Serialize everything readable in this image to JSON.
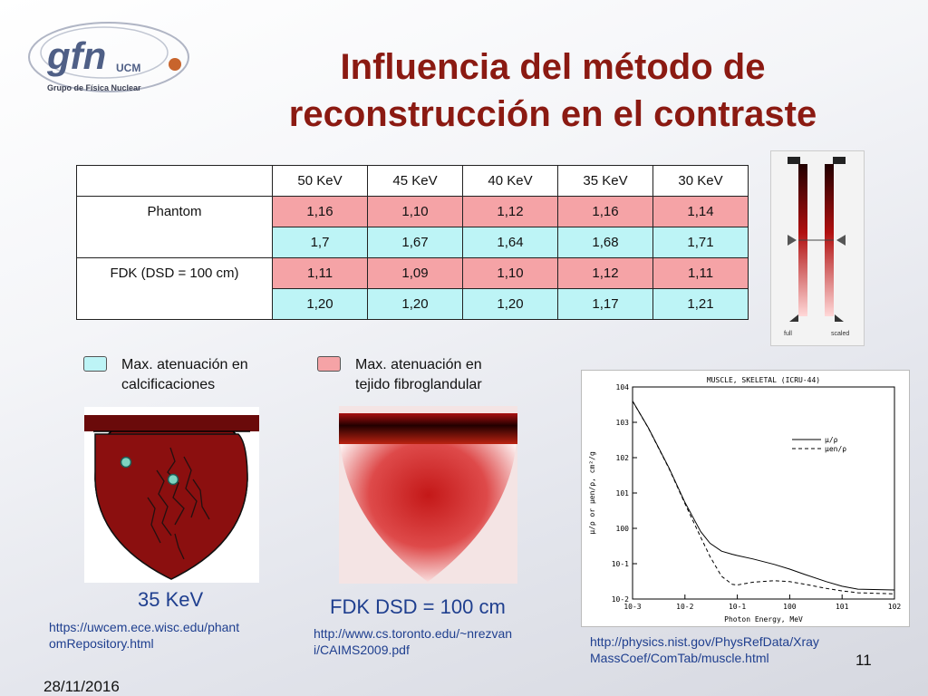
{
  "slide": {
    "title_line1": "Influencia del método de",
    "title_line2": "reconstrucción en el contraste",
    "page_number": "11",
    "date": "28/11/2016"
  },
  "logo": {
    "main": "gfn",
    "sub": "UCM",
    "subtitle": "Grupo de Física Nuclear"
  },
  "table": {
    "headers": [
      "",
      "50 KeV",
      "45 KeV",
      "40 KeV",
      "35 KeV",
      "30 KeV"
    ],
    "row_labels": [
      "Phantom",
      "FDK  (DSD = 100 cm)"
    ],
    "rows": [
      [
        "1,16",
        "1,10",
        "1,12",
        "1,16",
        "1,14"
      ],
      [
        "1,7",
        "1,67",
        "1,64",
        "1,68",
        "1,71"
      ],
      [
        "1,11",
        "1,09",
        "1,10",
        "1,12",
        "1,11"
      ],
      [
        "1,20",
        "1,20",
        "1,20",
        "1,17",
        "1,21"
      ]
    ]
  },
  "legend": {
    "calc_line1": "Max. atenuación en",
    "calc_line2": "calcificaciones",
    "fibro_line1": "Max. atenuación en",
    "fibro_line2": "tejido fibroglandular",
    "calc_color": "#bdf4f6",
    "fibro_color": "#f5a3a6"
  },
  "bar_image": {
    "label_left": "full",
    "label_right": "scaled"
  },
  "images": {
    "left_caption": "35 KeV",
    "middle_caption": "FDK DSD = 100 cm",
    "left_url_1": "https://uwcem.ece.wisc.edu/phant",
    "left_url_2": "omRepository.html",
    "middle_url_1": "http://www.cs.toronto.edu/~nrezvan",
    "middle_url_2": "i/CAIMS2009.pdf",
    "right_url_1": "http://physics.nist.gov/PhysRefData/Xray",
    "right_url_2": "MassCoef/ComTab/muscle.html"
  },
  "chart_data": {
    "type": "line",
    "title": "MUSCLE, SKELETAL (ICRU-44)",
    "xlabel": "Photon Energy, MeV",
    "ylabel": "μ/ρ or μen/ρ, cm²/g",
    "x_scale": "log",
    "y_scale": "log",
    "xlim": [
      0.001,
      100
    ],
    "ylim": [
      0.01,
      10000
    ],
    "x_ticks": [
      "10-3",
      "10-2",
      "10-1",
      "100",
      "101",
      "102"
    ],
    "y_ticks": [
      "104",
      "103",
      "102",
      "101",
      "100",
      "10-1",
      "10-2"
    ],
    "legend_position": "top-right",
    "series": [
      {
        "name": "μ/ρ",
        "style": "solid",
        "x": [
          0.001,
          0.002,
          0.005,
          0.01,
          0.02,
          0.03,
          0.05,
          0.08,
          0.1,
          0.2,
          0.5,
          1,
          2,
          5,
          10,
          20,
          100
        ],
        "y": [
          4000,
          700,
          50,
          5.4,
          0.81,
          0.38,
          0.226,
          0.185,
          0.17,
          0.136,
          0.096,
          0.07,
          0.049,
          0.031,
          0.023,
          0.019,
          0.018
        ]
      },
      {
        "name": "μen/ρ",
        "style": "dashed",
        "x": [
          0.001,
          0.002,
          0.005,
          0.01,
          0.02,
          0.03,
          0.05,
          0.08,
          0.1,
          0.2,
          0.5,
          1,
          2,
          5,
          10,
          20,
          100
        ],
        "y": [
          3980,
          690,
          48,
          5.0,
          0.56,
          0.16,
          0.044,
          0.026,
          0.025,
          0.03,
          0.033,
          0.031,
          0.026,
          0.02,
          0.017,
          0.015,
          0.014
        ]
      }
    ]
  }
}
